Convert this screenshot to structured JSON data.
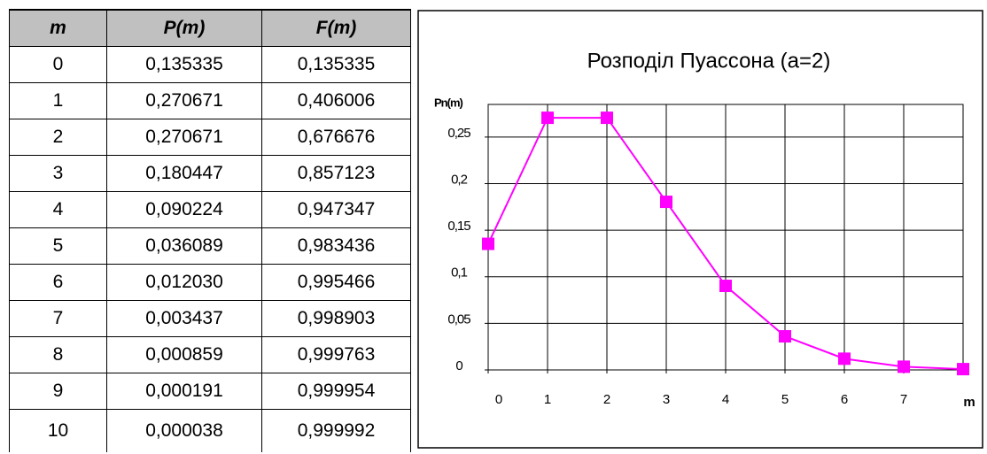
{
  "table": {
    "header": [
      "m",
      "P(m)",
      "F(m)"
    ],
    "rows": [
      [
        "0",
        "0,135335",
        "0,135335"
      ],
      [
        "1",
        "0,270671",
        "0,406006"
      ],
      [
        "2",
        "0,270671",
        "0,676676"
      ],
      [
        "3",
        "0,180447",
        "0,857123"
      ],
      [
        "4",
        "0,090224",
        "0,947347"
      ],
      [
        "5",
        "0,036089",
        "0,983436"
      ],
      [
        "6",
        "0,012030",
        "0,995466"
      ],
      [
        "7",
        "0,003437",
        "0,998903"
      ],
      [
        "8",
        "0,000859",
        "0,999763"
      ],
      [
        "9",
        "0,000191",
        "0,999954"
      ],
      [
        "10",
        "0,000038",
        "0,999992"
      ]
    ]
  },
  "chart_data": {
    "type": "line",
    "title": "Розподіл Пуассона  (a=2)",
    "y_label": "Pn(m)",
    "x_label": "m",
    "x": [
      0,
      1,
      2,
      3,
      4,
      5,
      6,
      7,
      8
    ],
    "series": [
      {
        "name": "P(m)",
        "color": "#ff00ff",
        "values": [
          0.135335,
          0.270671,
          0.270671,
          0.180447,
          0.090224,
          0.036089,
          0.01203,
          0.003437,
          0.000859
        ]
      }
    ],
    "xlim": [
      0,
      8
    ],
    "xticks": [
      0,
      1,
      2,
      3,
      4,
      5,
      6,
      7
    ],
    "ylim": [
      0,
      0.285
    ],
    "yticks": [
      0,
      {
        "value": 0.05,
        "label": "0,05"
      },
      {
        "value": 0.1,
        "label": "0,1"
      },
      {
        "value": 0.15,
        "label": "0,15"
      },
      {
        "value": 0.2,
        "label": "0,2"
      },
      {
        "value": 0.25,
        "label": "0,25"
      }
    ],
    "grid": true
  }
}
